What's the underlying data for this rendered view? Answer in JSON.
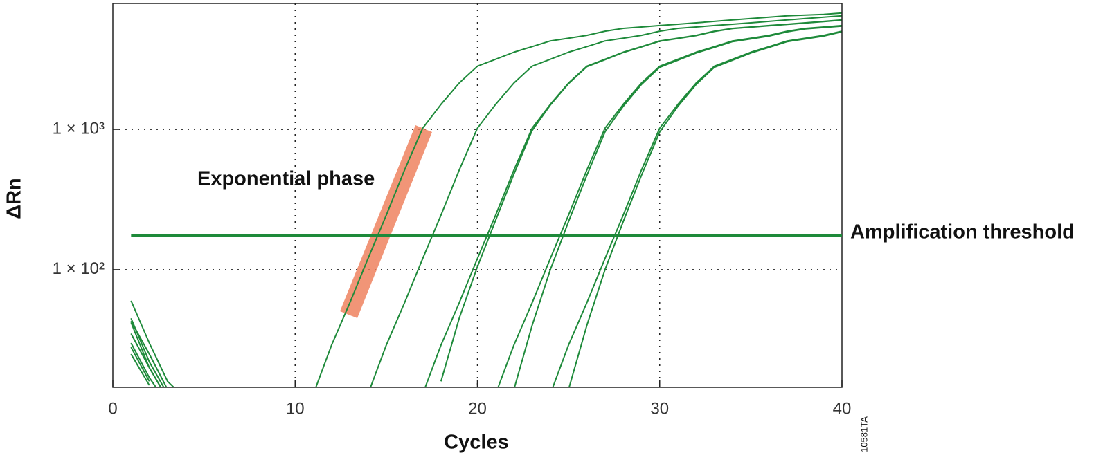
{
  "chart_data": {
    "type": "line",
    "x_label": "Cycles",
    "y_label": "ΔRn",
    "y_scale": "log",
    "grid": true,
    "xlim": [
      0,
      40
    ],
    "xticks": [
      0,
      10,
      20,
      30,
      40
    ],
    "ylim": [
      14.5,
      7900
    ],
    "yticks": [
      {
        "value": 100,
        "label": "1 × 10²"
      },
      {
        "value": 1000,
        "label": "1 × 10³"
      }
    ],
    "annotation": "Exponential phase",
    "threshold": {
      "value": 176,
      "label": "Amplification threshold",
      "color": "#1e8a3a"
    },
    "figure_code": "10581TA",
    "x": [
      1,
      2,
      3,
      4,
      5,
      6,
      7,
      8,
      9,
      10,
      11,
      12,
      13,
      14,
      15,
      16,
      17,
      18,
      19,
      20,
      21,
      22,
      23,
      24,
      25,
      26,
      27,
      28,
      29,
      30,
      31,
      32,
      33,
      34,
      35,
      36,
      37,
      38,
      39,
      40
    ],
    "series": [
      {
        "color": "#1e8a3a",
        "values": [
          60,
          30,
          16,
          12,
          null,
          null,
          null,
          null,
          null,
          null,
          13,
          29,
          58,
          120,
          245,
          513,
          1020,
          1510,
          2140,
          2820,
          3160,
          3550,
          3890,
          4270,
          4470,
          4680,
          5010,
          5250,
          5370,
          5500,
          5620,
          5750,
          5890,
          6030,
          6170,
          6310,
          6460,
          6530,
          6610,
          6760
        ]
      },
      {
        "color": "#1e8a3a",
        "values": [
          45,
          22,
          13,
          null,
          null,
          null,
          null,
          null,
          null,
          null,
          null,
          null,
          null,
          13,
          29,
          58,
          120,
          245,
          513,
          1020,
          1510,
          2140,
          2820,
          3160,
          3550,
          3890,
          4270,
          4470,
          4680,
          5010,
          5250,
          5370,
          5500,
          5620,
          5750,
          5890,
          6030,
          6170,
          6310,
          6460
        ]
      },
      {
        "color": "#1e8a3a",
        "values": [
          43,
          25,
          14,
          null,
          null,
          null,
          null,
          null,
          null,
          null,
          null,
          null,
          null,
          null,
          null,
          null,
          13,
          29,
          58,
          120,
          245,
          513,
          1020,
          1510,
          2140,
          2820,
          3160,
          3550,
          3890,
          4270,
          4470,
          4680,
          5010,
          5250,
          5370,
          5500,
          5620,
          5750,
          5890,
          6030
        ]
      },
      {
        "color": "#1e8a3a",
        "values": [
          35,
          20,
          12,
          null,
          null,
          null,
          null,
          null,
          null,
          null,
          null,
          null,
          null,
          null,
          null,
          null,
          null,
          16,
          45,
          105,
          225,
          480,
          980,
          1490,
          2120,
          2800,
          3140,
          3530,
          3870,
          4250,
          4450,
          4660,
          4990,
          5230,
          5350,
          5480,
          5600,
          5730,
          5870,
          6010
        ]
      },
      {
        "color": "#1e8a3a",
        "values": [
          30,
          17,
          11,
          null,
          null,
          null,
          null,
          null,
          null,
          null,
          null,
          null,
          null,
          null,
          null,
          null,
          null,
          null,
          null,
          null,
          13,
          29,
          58,
          120,
          245,
          513,
          1020,
          1510,
          2140,
          2820,
          3160,
          3550,
          3890,
          4270,
          4470,
          4680,
          5010,
          5250,
          5370,
          5500
        ]
      },
      {
        "color": "#1e8a3a",
        "values": [
          28,
          16,
          null,
          null,
          null,
          null,
          null,
          null,
          null,
          null,
          null,
          null,
          null,
          null,
          null,
          null,
          null,
          null,
          null,
          null,
          null,
          14,
          40,
          100,
          220,
          470,
          960,
          1460,
          2090,
          2770,
          3110,
          3500,
          3840,
          4220,
          4420,
          4630,
          4960,
          5200,
          5320,
          5450
        ]
      },
      {
        "color": "#1e8a3a",
        "values": [
          42,
          20,
          12,
          null,
          null,
          null,
          null,
          null,
          null,
          null,
          null,
          null,
          null,
          null,
          null,
          null,
          null,
          null,
          null,
          null,
          null,
          null,
          null,
          13,
          29,
          58,
          120,
          245,
          513,
          1020,
          1510,
          2140,
          2820,
          3160,
          3550,
          3890,
          4270,
          4470,
          4680,
          5010
        ]
      },
      {
        "color": "#1e8a3a",
        "values": [
          25,
          15,
          null,
          null,
          null,
          null,
          null,
          null,
          null,
          null,
          null,
          null,
          null,
          null,
          null,
          null,
          null,
          null,
          null,
          null,
          null,
          null,
          null,
          null,
          14,
          40,
          100,
          220,
          470,
          960,
          1460,
          2090,
          2770,
          3110,
          3500,
          3840,
          4220,
          4420,
          4630,
          4960
        ]
      }
    ]
  }
}
